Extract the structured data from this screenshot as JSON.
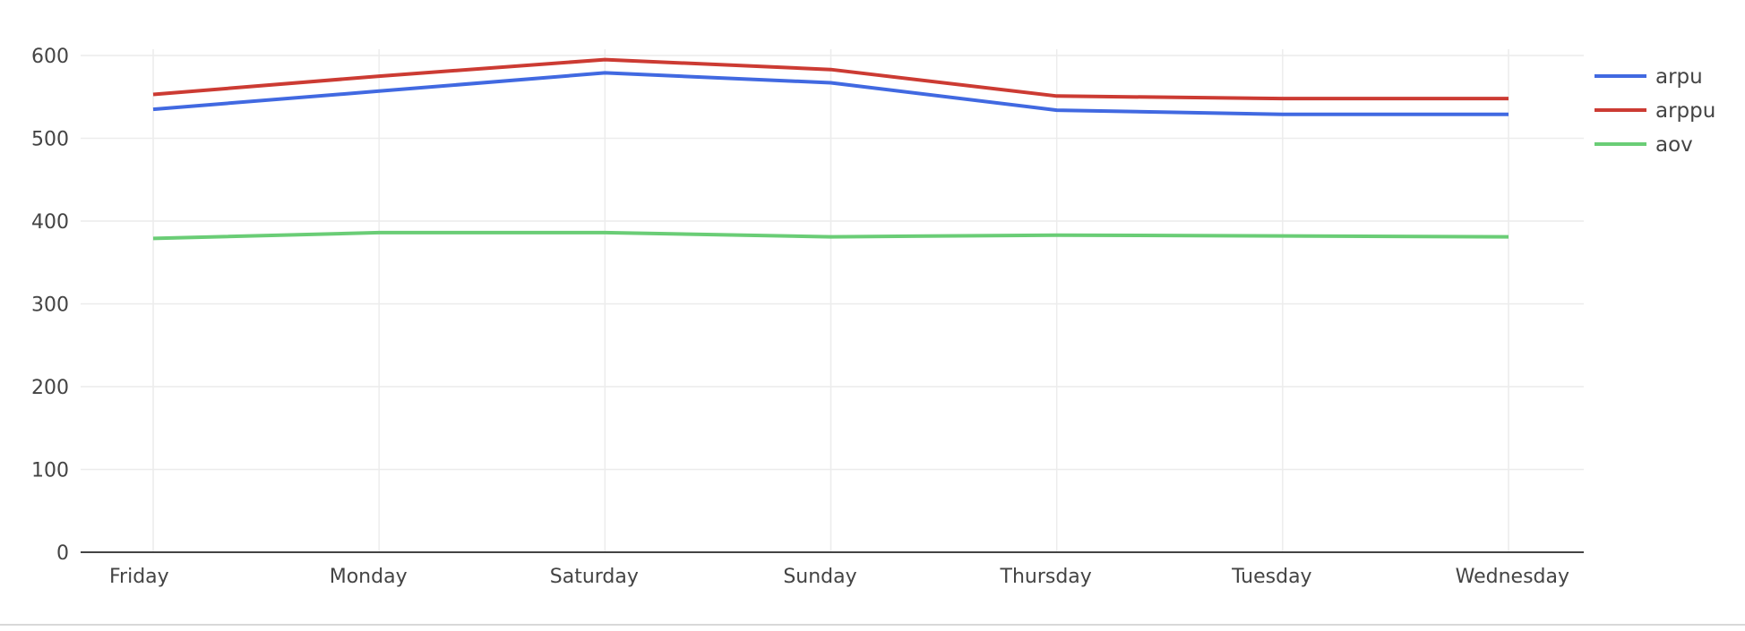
{
  "chart_data": {
    "type": "line",
    "title": "",
    "xlabel": "",
    "ylabel": "",
    "categories": [
      "Friday",
      "Monday",
      "Saturday",
      "Sunday",
      "Thursday",
      "Tuesday",
      "Wednesday"
    ],
    "ylim": [
      0,
      600
    ],
    "yticks": [
      0,
      100,
      200,
      300,
      400,
      500,
      600
    ],
    "grid": true,
    "legend_position": "right",
    "series": [
      {
        "name": "arpu",
        "color": "#4169e1",
        "values": [
          535,
          557,
          579,
          567,
          534,
          529,
          529
        ]
      },
      {
        "name": "arppu",
        "color": "#cc3b33",
        "values": [
          553,
          575,
          595,
          583,
          551,
          548,
          548
        ]
      },
      {
        "name": "aov",
        "color": "#6acd76",
        "values": [
          379,
          386,
          386,
          381,
          383,
          382,
          381
        ]
      }
    ]
  }
}
